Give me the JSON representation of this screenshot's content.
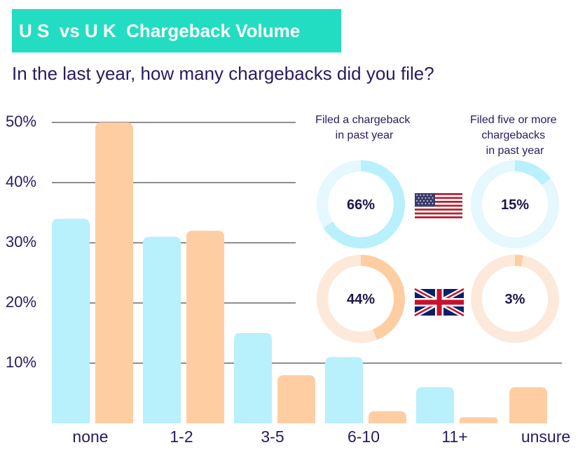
{
  "title": "U S  vs U K  Chargeback Volume",
  "subtitle": "In the last year, how many chargebacks did you file?",
  "colors": {
    "us": "#b8f0fb",
    "uk": "#ffcda2",
    "us_track": "#e4f8fd",
    "uk_track": "#fde9da",
    "grid": "#8e8e8e",
    "header_bg": "#23ddc2"
  },
  "chart_data": {
    "type": "bar",
    "categories": [
      "none",
      "1-2",
      "3-5",
      "6-10",
      "11+",
      "unsure"
    ],
    "series": [
      {
        "name": "US",
        "values": [
          34,
          31,
          15,
          11,
          6,
          null
        ]
      },
      {
        "name": "UK",
        "values": [
          50,
          32,
          8,
          2,
          1,
          6
        ]
      }
    ],
    "y_tick_labels": [
      "50%",
      "40%",
      "30%",
      "20%",
      "10%"
    ],
    "y_ticks": [
      50,
      40,
      30,
      20,
      10
    ],
    "ylim": [
      0,
      50
    ],
    "grid": true
  },
  "donuts": {
    "header_left": [
      "Filed a chargeback",
      "in past year"
    ],
    "header_right": [
      "Filed five or more",
      "chargebacks",
      "in past year"
    ],
    "rows": [
      {
        "country": "US",
        "flag_icon": "us-flag-icon",
        "filed": 66,
        "filed_label": "66%",
        "five_plus": 15,
        "five_plus_label": "15%"
      },
      {
        "country": "UK",
        "flag_icon": "uk-flag-icon",
        "filed": 44,
        "filed_label": "44%",
        "five_plus": 3,
        "five_plus_label": "3%"
      }
    ]
  }
}
